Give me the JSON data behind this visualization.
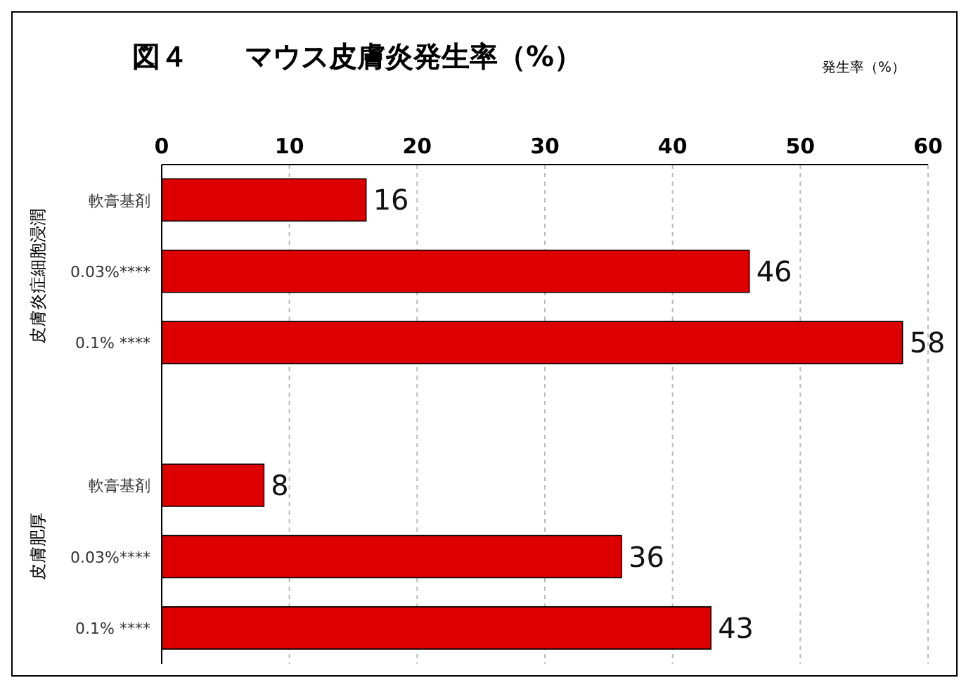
{
  "chart_data": {
    "type": "bar",
    "orientation": "horizontal",
    "title": "図４　　マウス皮膚炎発生率（%）",
    "xlabel": "発生率（%）",
    "categories": [
      "軟膏基剤",
      "0.03%****",
      "0.1% ****",
      null,
      "軟膏基剤",
      "0.03%****",
      "0.1% ****"
    ],
    "values": [
      16,
      46,
      58,
      null,
      8,
      36,
      43
    ],
    "color": "#dd0000",
    "xlim": [
      0,
      60
    ],
    "xticks": [
      0,
      10,
      20,
      30,
      40,
      50,
      60
    ],
    "grid": "x",
    "data_labels": true,
    "annotations": [
      "皮膚炎症細胞浸潤",
      "皮膚肥厚"
    ]
  }
}
